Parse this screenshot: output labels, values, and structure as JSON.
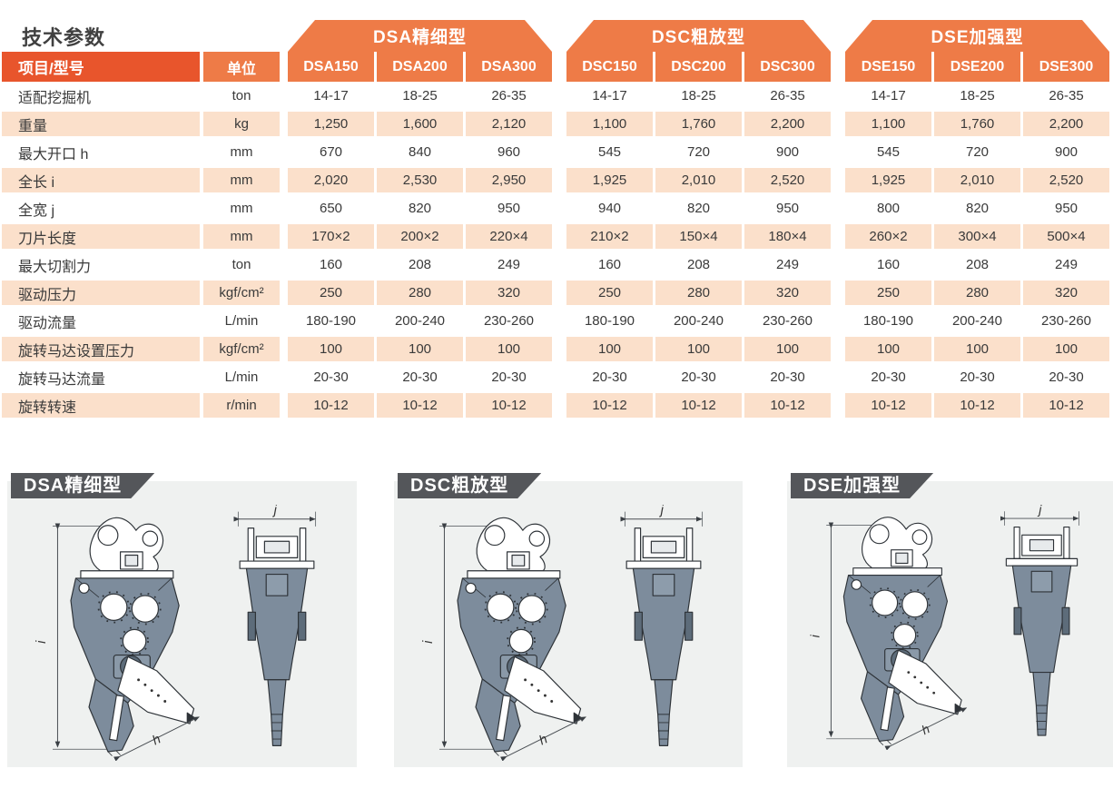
{
  "page_title": "技术参数",
  "table": {
    "corner_label": "项目/型号",
    "unit_label": "单位",
    "groups": [
      {
        "name": "DSA精细型",
        "models": [
          "DSA150",
          "DSA200",
          "DSA300"
        ]
      },
      {
        "name": "DSC粗放型",
        "models": [
          "DSC150",
          "DSC200",
          "DSC300"
        ]
      },
      {
        "name": "DSE加强型",
        "models": [
          "DSE150",
          "DSE200",
          "DSE300"
        ]
      }
    ],
    "rows": [
      {
        "item": "适配挖掘机",
        "unit": "ton",
        "values": [
          "14-17",
          "18-25",
          "26-35",
          "14-17",
          "18-25",
          "26-35",
          "14-17",
          "18-25",
          "26-35"
        ]
      },
      {
        "item": "重量",
        "unit": "kg",
        "values": [
          "1,250",
          "1,600",
          "2,120",
          "1,100",
          "1,760",
          "2,200",
          "1,100",
          "1,760",
          "2,200"
        ]
      },
      {
        "item": "最大开口 h",
        "unit": "mm",
        "values": [
          "670",
          "840",
          "960",
          "545",
          "720",
          "900",
          "545",
          "720",
          "900"
        ]
      },
      {
        "item": "全长 i",
        "unit": "mm",
        "values": [
          "2,020",
          "2,530",
          "2,950",
          "1,925",
          "2,010",
          "2,520",
          "1,925",
          "2,010",
          "2,520"
        ]
      },
      {
        "item": "全宽 j",
        "unit": "mm",
        "values": [
          "650",
          "820",
          "950",
          "940",
          "820",
          "950",
          "800",
          "820",
          "950"
        ]
      },
      {
        "item": "刀片长度",
        "unit": "mm",
        "values": [
          "170×2",
          "200×2",
          "220×4",
          "210×2",
          "150×4",
          "180×4",
          "260×2",
          "300×4",
          "500×4"
        ]
      },
      {
        "item": "最大切割力",
        "unit": "ton",
        "values": [
          "160",
          "208",
          "249",
          "160",
          "208",
          "249",
          "160",
          "208",
          "249"
        ]
      },
      {
        "item": "驱动压力",
        "unit": "kgf/cm²",
        "values": [
          "250",
          "280",
          "320",
          "250",
          "280",
          "320",
          "250",
          "280",
          "320"
        ]
      },
      {
        "item": "驱动流量",
        "unit": "L/min",
        "values": [
          "180-190",
          "200-240",
          "230-260",
          "180-190",
          "200-240",
          "230-260",
          "180-190",
          "200-240",
          "230-260"
        ]
      },
      {
        "item": "旋转马达设置压力",
        "unit": "kgf/cm²",
        "values": [
          "100",
          "100",
          "100",
          "100",
          "100",
          "100",
          "100",
          "100",
          "100"
        ]
      },
      {
        "item": "旋转马达流量",
        "unit": "L/min",
        "values": [
          "20-30",
          "20-30",
          "20-30",
          "20-30",
          "20-30",
          "20-30",
          "20-30",
          "20-30",
          "20-30"
        ]
      },
      {
        "item": "旋转转速",
        "unit": "r/min",
        "values": [
          "10-12",
          "10-12",
          "10-12",
          "10-12",
          "10-12",
          "10-12",
          "10-12",
          "10-12",
          "10-12"
        ]
      }
    ]
  },
  "drawings": {
    "panels": [
      {
        "title": "DSA精细型"
      },
      {
        "title": "DSC粗放型"
      },
      {
        "title": "DSE加强型"
      }
    ],
    "dimension_labels": {
      "overall_length": "i",
      "max_opening": "h",
      "overall_width": "j"
    }
  },
  "colors": {
    "header_deep_orange": "#e8552c",
    "header_orange": "#ee7b47",
    "row_stripe_peach": "#fbe0cb",
    "panel_background": "#eff1f0",
    "banner_gray": "#54565a",
    "drawing_slate": "#7d8c9c",
    "text_dark": "#3a3a3a"
  }
}
